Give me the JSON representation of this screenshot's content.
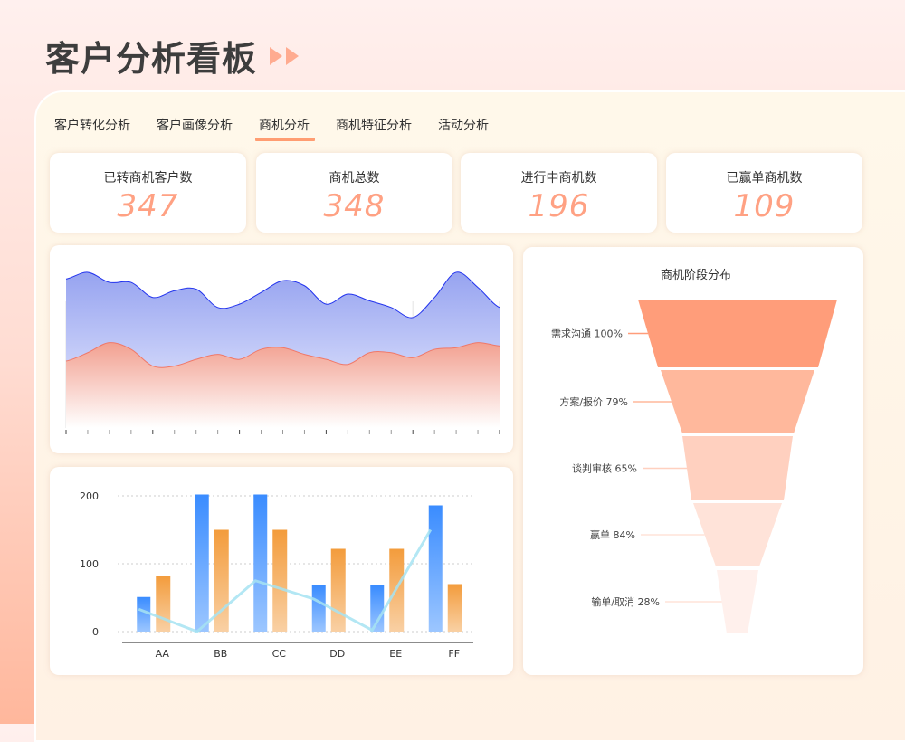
{
  "header": {
    "title": "客户分析看板",
    "icon": "double-chevron-right-icon"
  },
  "tabs": [
    {
      "label": "客户转化分析"
    },
    {
      "label": "客户画像分析"
    },
    {
      "label": "商机分析",
      "active": true
    },
    {
      "label": "商机特征分析"
    },
    {
      "label": "活动分析"
    }
  ],
  "kpis": [
    {
      "label": "已转商机客户数",
      "value": "347"
    },
    {
      "label": "商机总数",
      "value": "348"
    },
    {
      "label": "进行中商机数",
      "value": "196"
    },
    {
      "label": "已赢单商机数",
      "value": "109"
    }
  ],
  "colors": {
    "accent": "#ff9d72",
    "kpi_value": "#ffa183",
    "area_blue": "#2233ee",
    "area_red": "#f07868",
    "bar_blue": "#3a8cff",
    "bar_orange": "#f39c3c",
    "line": "#a6e3f2"
  },
  "chart_data": [
    {
      "type": "area",
      "ylim": [
        0,
        100
      ],
      "grid": "vertical",
      "x": [
        0,
        1,
        2,
        3,
        4,
        5,
        6,
        7,
        8,
        9,
        10,
        11,
        12,
        13,
        14,
        15,
        16,
        17,
        18,
        19,
        20
      ],
      "series": [
        {
          "values": [
            89,
            93,
            87,
            87,
            78,
            82,
            83,
            72,
            74,
            81,
            88,
            85,
            74,
            80,
            76,
            72,
            66,
            78,
            93,
            84,
            72
          ]
        },
        {
          "values": [
            40,
            45,
            51,
            47,
            37,
            37,
            41,
            44,
            41,
            47,
            48,
            44,
            41,
            38,
            45,
            45,
            42,
            47,
            48,
            51,
            49
          ]
        }
      ]
    },
    {
      "type": "bar",
      "categories": [
        "AA",
        "BB",
        "CC",
        "DD",
        "EE",
        "FF"
      ],
      "ylim": [
        0,
        200
      ],
      "yticks": [
        "0",
        "100",
        "200"
      ],
      "grid": "horizontal-dotted",
      "series": [
        {
          "type": "bar",
          "values": [
            51,
            202,
            202,
            68,
            68,
            186
          ]
        },
        {
          "type": "bar",
          "values": [
            82,
            150,
            150,
            122,
            122,
            70
          ]
        },
        {
          "type": "line",
          "values": [
            33,
            0,
            75,
            48,
            2,
            150
          ]
        }
      ]
    },
    {
      "type": "funnel",
      "title": "商机阶段分布",
      "stages": [
        {
          "label": "需求沟通",
          "pct": "100%"
        },
        {
          "label": "方案/报价",
          "pct": "79%"
        },
        {
          "label": "谈判审核",
          "pct": "65%"
        },
        {
          "label": "赢单",
          "pct": "84%"
        },
        {
          "label": "输单/取消",
          "pct": "28%"
        }
      ],
      "colors": [
        "#ff9d7a",
        "#ffb89c",
        "#ffd0bf",
        "#ffe3d9",
        "#fff0ec"
      ]
    }
  ]
}
